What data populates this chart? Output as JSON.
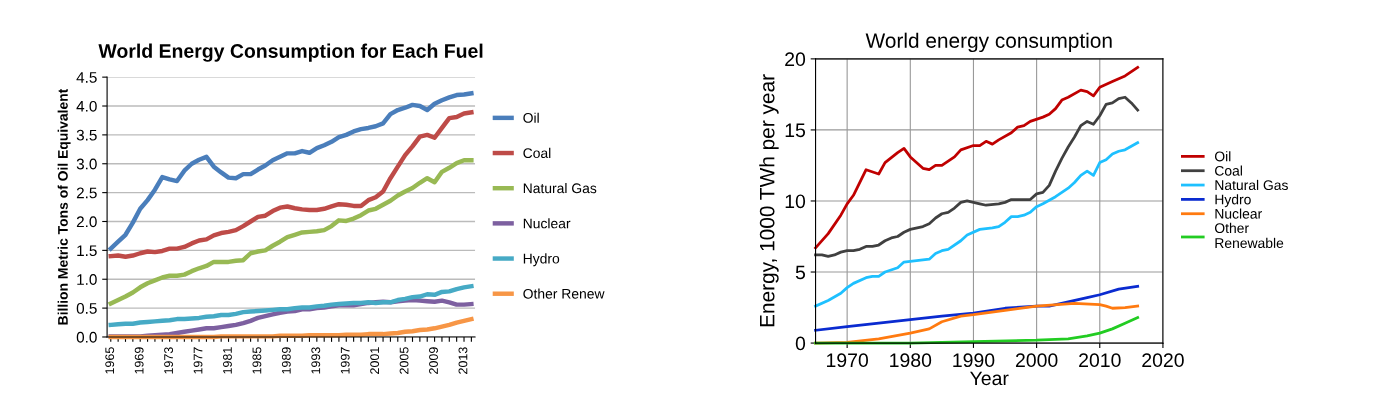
{
  "chart_data": [
    {
      "type": "line",
      "title": "World Energy Consumption for Each Fuel",
      "ylabel": "Billion Metric Tons of Oil Equivalent",
      "categories": [
        "1965",
        null,
        null,
        null,
        "1969",
        null,
        null,
        null,
        "1973",
        null,
        null,
        null,
        "1977",
        null,
        null,
        null,
        "1981",
        null,
        null,
        null,
        "1985",
        null,
        null,
        null,
        "1989",
        null,
        null,
        null,
        "1993",
        null,
        null,
        null,
        "1997",
        null,
        null,
        null,
        "2001",
        null,
        null,
        null,
        "2005",
        null,
        null,
        null,
        "2009",
        null,
        null,
        null,
        "2013",
        null
      ],
      "ylim": [
        0,
        4.5
      ],
      "yticks": [
        {
          "value": 0,
          "label": "0.0"
        },
        {
          "value": 0.5,
          "label": "0.5"
        },
        {
          "value": 1,
          "label": "1.0"
        },
        {
          "value": 1.5,
          "label": "1.5"
        },
        {
          "value": 2,
          "label": "2.0"
        },
        {
          "value": 2.5,
          "label": "2.5"
        },
        {
          "value": 3,
          "label": "3.0"
        },
        {
          "value": 3.5,
          "label": "3.5"
        },
        {
          "value": 4,
          "label": "4.0"
        },
        {
          "value": 4.5,
          "label": "4.5"
        }
      ],
      "grid": "y",
      "legend": "right",
      "marker": "none",
      "series": [
        {
          "name": "Oil",
          "color": "#4a7ebb",
          "values": [
            1.53,
            1.65,
            1.77,
            1.98,
            2.22,
            2.37,
            2.55,
            2.77,
            2.73,
            2.7,
            2.88,
            3.0,
            3.07,
            3.12,
            2.95,
            2.85,
            2.76,
            2.75,
            2.82,
            2.82,
            2.9,
            2.97,
            3.06,
            3.12,
            3.18,
            3.18,
            3.22,
            3.19,
            3.27,
            3.32,
            3.38,
            3.46,
            3.5,
            3.56,
            3.6,
            3.62,
            3.65,
            3.7,
            3.86,
            3.93,
            3.97,
            4.02,
            4.0,
            3.93,
            4.04,
            4.1,
            4.15,
            4.19,
            4.2,
            4.22
          ]
        },
        {
          "name": "Coal",
          "color": "#be4b48",
          "values": [
            1.4,
            1.41,
            1.39,
            1.41,
            1.45,
            1.48,
            1.47,
            1.49,
            1.53,
            1.53,
            1.56,
            1.62,
            1.67,
            1.69,
            1.76,
            1.8,
            1.82,
            1.85,
            1.92,
            2.0,
            2.08,
            2.1,
            2.18,
            2.24,
            2.26,
            2.23,
            2.21,
            2.2,
            2.2,
            2.22,
            2.26,
            2.3,
            2.29,
            2.27,
            2.27,
            2.37,
            2.42,
            2.52,
            2.75,
            2.95,
            3.15,
            3.3,
            3.47,
            3.5,
            3.45,
            3.62,
            3.79,
            3.81,
            3.87,
            3.89
          ]
        },
        {
          "name": "Natural Gas",
          "color": "#98b954",
          "values": [
            0.58,
            0.64,
            0.7,
            0.77,
            0.86,
            0.93,
            0.98,
            1.03,
            1.06,
            1.06,
            1.08,
            1.14,
            1.19,
            1.23,
            1.3,
            1.3,
            1.3,
            1.32,
            1.33,
            1.45,
            1.48,
            1.5,
            1.58,
            1.65,
            1.73,
            1.77,
            1.81,
            1.82,
            1.83,
            1.85,
            1.92,
            2.02,
            2.01,
            2.05,
            2.11,
            2.19,
            2.22,
            2.29,
            2.36,
            2.45,
            2.52,
            2.58,
            2.67,
            2.75,
            2.68,
            2.86,
            2.93,
            3.01,
            3.06,
            3.06
          ]
        },
        {
          "name": "Nuclear",
          "color": "#7d60a0",
          "values": [
            0.01,
            0.01,
            0.01,
            0.01,
            0.01,
            0.02,
            0.03,
            0.04,
            0.05,
            0.07,
            0.09,
            0.11,
            0.13,
            0.15,
            0.15,
            0.17,
            0.19,
            0.21,
            0.24,
            0.28,
            0.33,
            0.36,
            0.39,
            0.42,
            0.44,
            0.45,
            0.48,
            0.48,
            0.5,
            0.51,
            0.53,
            0.55,
            0.55,
            0.55,
            0.57,
            0.59,
            0.6,
            0.61,
            0.6,
            0.62,
            0.63,
            0.64,
            0.63,
            0.62,
            0.61,
            0.63,
            0.6,
            0.56,
            0.56,
            0.57
          ]
        },
        {
          "name": "Hydro",
          "color": "#46aac5",
          "values": [
            0.21,
            0.22,
            0.23,
            0.23,
            0.25,
            0.26,
            0.27,
            0.28,
            0.29,
            0.31,
            0.31,
            0.32,
            0.33,
            0.35,
            0.36,
            0.38,
            0.38,
            0.4,
            0.43,
            0.44,
            0.45,
            0.46,
            0.47,
            0.48,
            0.48,
            0.5,
            0.51,
            0.51,
            0.53,
            0.54,
            0.56,
            0.57,
            0.58,
            0.59,
            0.59,
            0.6,
            0.59,
            0.6,
            0.6,
            0.64,
            0.66,
            0.69,
            0.7,
            0.74,
            0.73,
            0.78,
            0.79,
            0.83,
            0.86,
            0.88
          ]
        },
        {
          "name": "Other Renew",
          "color": "#f79646",
          "values": [
            0,
            0,
            0,
            0,
            0,
            0,
            0,
            0,
            0,
            0,
            0,
            0,
            0,
            0,
            0,
            0.01,
            0.01,
            0.01,
            0.01,
            0.01,
            0.01,
            0.01,
            0.01,
            0.02,
            0.02,
            0.02,
            0.02,
            0.03,
            0.03,
            0.03,
            0.03,
            0.03,
            0.04,
            0.04,
            0.04,
            0.05,
            0.05,
            0.05,
            0.06,
            0.07,
            0.09,
            0.1,
            0.12,
            0.13,
            0.15,
            0.18,
            0.21,
            0.25,
            0.28,
            0.31
          ]
        }
      ]
    },
    {
      "type": "line",
      "title": "World energy consumption",
      "xlabel": "Year",
      "ylabel": "Energy, 1000 TWh per year",
      "xlim": [
        1965,
        2020
      ],
      "xticks": [
        1970,
        1980,
        1990,
        2000,
        2010,
        2020
      ],
      "ylim": [
        0,
        20
      ],
      "yticks": [
        0,
        5,
        10,
        15,
        20
      ],
      "grid": true,
      "legend": "right",
      "marker": "none",
      "series": [
        {
          "name": "Oil",
          "color": "#c00000",
          "x": [
            1965,
            1967,
            1969,
            1970,
            1971,
            1973,
            1975,
            1976,
            1978,
            1979,
            1980,
            1982,
            1983,
            1984,
            1985,
            1987,
            1988,
            1990,
            1991,
            1992,
            1993,
            1994,
            1996,
            1997,
            1998,
            1999,
            2001,
            2002,
            2003,
            2004,
            2005,
            2007,
            2008,
            2009,
            2010,
            2012,
            2014,
            2016
          ],
          "values": [
            6.7,
            7.7,
            9.0,
            9.8,
            10.4,
            12.2,
            11.9,
            12.7,
            13.4,
            13.7,
            13.1,
            12.3,
            12.2,
            12.5,
            12.5,
            13.1,
            13.6,
            13.9,
            13.9,
            14.2,
            14.0,
            14.3,
            14.8,
            15.2,
            15.3,
            15.6,
            15.9,
            16.1,
            16.5,
            17.1,
            17.3,
            17.8,
            17.7,
            17.4,
            18.0,
            18.4,
            18.8,
            19.4
          ]
        },
        {
          "name": "Coal",
          "color": "#404040",
          "x": [
            1965,
            1966,
            1967,
            1968,
            1969,
            1970,
            1971,
            1972,
            1973,
            1974,
            1975,
            1976,
            1977,
            1978,
            1979,
            1980,
            1982,
            1983,
            1984,
            1985,
            1986,
            1987,
            1988,
            1989,
            1990,
            1991,
            1992,
            1994,
            1995,
            1996,
            1997,
            1998,
            1999,
            2000,
            2001,
            2002,
            2003,
            2004,
            2005,
            2006,
            2007,
            2008,
            2009,
            2010,
            2011,
            2012,
            2013,
            2014,
            2015,
            2016
          ],
          "values": [
            6.2,
            6.2,
            6.1,
            6.2,
            6.4,
            6.5,
            6.5,
            6.6,
            6.8,
            6.8,
            6.9,
            7.2,
            7.4,
            7.5,
            7.8,
            8.0,
            8.2,
            8.4,
            8.8,
            9.1,
            9.2,
            9.5,
            9.9,
            10.0,
            9.9,
            9.8,
            9.7,
            9.8,
            9.9,
            10.1,
            10.1,
            10.1,
            10.1,
            10.5,
            10.6,
            11.1,
            12.1,
            13.0,
            13.8,
            14.5,
            15.3,
            15.6,
            15.4,
            16.0,
            16.8,
            16.9,
            17.2,
            17.3,
            16.9,
            16.4
          ]
        },
        {
          "name": "Natural Gas",
          "color": "#1ec0ff",
          "x": [
            1965,
            1967,
            1969,
            1970,
            1971,
            1973,
            1974,
            1975,
            1976,
            1978,
            1979,
            1981,
            1983,
            1984,
            1985,
            1986,
            1988,
            1989,
            1991,
            1993,
            1994,
            1995,
            1996,
            1997,
            1998,
            1999,
            2000,
            2001,
            2003,
            2005,
            2006,
            2007,
            2008,
            2009,
            2010,
            2011,
            2012,
            2013,
            2014,
            2016
          ],
          "values": [
            2.6,
            3.0,
            3.5,
            3.9,
            4.2,
            4.6,
            4.7,
            4.7,
            5.0,
            5.3,
            5.7,
            5.8,
            5.9,
            6.3,
            6.5,
            6.6,
            7.2,
            7.6,
            8.0,
            8.1,
            8.2,
            8.5,
            8.9,
            8.9,
            9.0,
            9.2,
            9.6,
            9.8,
            10.3,
            10.9,
            11.3,
            11.8,
            12.1,
            11.8,
            12.7,
            12.9,
            13.3,
            13.5,
            13.6,
            14.1
          ]
        },
        {
          "name": "Hydro",
          "color": "#0a2bd0",
          "x": [
            1965,
            1970,
            1975,
            1980,
            1985,
            1990,
            1995,
            2000,
            2002,
            2005,
            2008,
            2010,
            2013,
            2016
          ],
          "values": [
            0.9,
            1.15,
            1.4,
            1.65,
            1.9,
            2.1,
            2.45,
            2.6,
            2.6,
            2.9,
            3.2,
            3.4,
            3.8,
            4.0
          ]
        },
        {
          "name": "Nuclear",
          "color": "#ff7a10",
          "x": [
            1965,
            1970,
            1975,
            1980,
            1983,
            1985,
            1988,
            1990,
            1995,
            2000,
            2006,
            2010,
            2011,
            2012,
            2014,
            2016
          ],
          "values": [
            0.0,
            0.05,
            0.3,
            0.7,
            1.0,
            1.5,
            1.9,
            2.0,
            2.3,
            2.6,
            2.8,
            2.7,
            2.6,
            2.45,
            2.5,
            2.6
          ]
        },
        {
          "name": "Other\nRenewable",
          "color": "#22cc22",
          "x": [
            1965,
            1980,
            1990,
            2000,
            2005,
            2008,
            2010,
            2012,
            2014,
            2016
          ],
          "values": [
            0.0,
            0.0,
            0.1,
            0.2,
            0.3,
            0.5,
            0.7,
            1.0,
            1.4,
            1.8
          ]
        }
      ]
    }
  ]
}
